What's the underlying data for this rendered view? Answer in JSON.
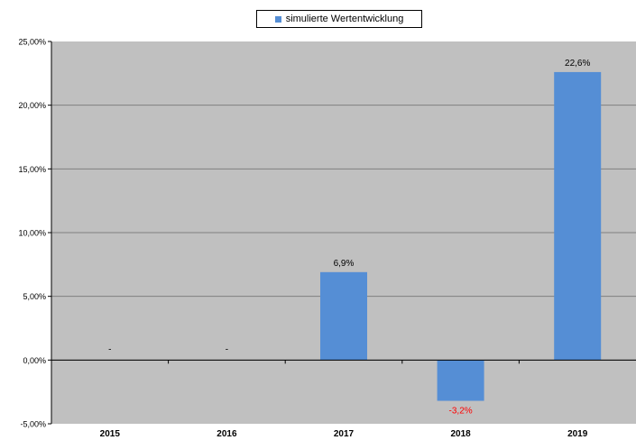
{
  "chart_data": {
    "type": "bar",
    "title": "",
    "xlabel": "",
    "ylabel": "",
    "categories": [
      "2015",
      "2016",
      "2017",
      "2018",
      "2019"
    ],
    "series": [
      {
        "name": "simulierte Wertentwicklung",
        "values": [
          null,
          null,
          6.9,
          -3.2,
          22.6
        ],
        "data_labels": [
          "-",
          "-",
          "6,9%",
          "-3,2%",
          "22,6%"
        ]
      }
    ],
    "ylim": [
      -5,
      25
    ],
    "y_ticks": [
      {
        "value": 25,
        "label": "25,00%"
      },
      {
        "value": 20,
        "label": "20,00%"
      },
      {
        "value": 15,
        "label": "15,00%"
      },
      {
        "value": 10,
        "label": "10,00%"
      },
      {
        "value": 5,
        "label": "5,00%"
      },
      {
        "value": 0,
        "label": "0,00%"
      },
      {
        "value": -5,
        "label": "-5,00%"
      }
    ],
    "grid": true,
    "legend_position": "top-center",
    "colors": {
      "bar": "#558ED5",
      "plot_background": "#C0C0C0",
      "gridline": "#808080",
      "positive_label": "#000000",
      "negative_label": "#FF0000"
    }
  }
}
